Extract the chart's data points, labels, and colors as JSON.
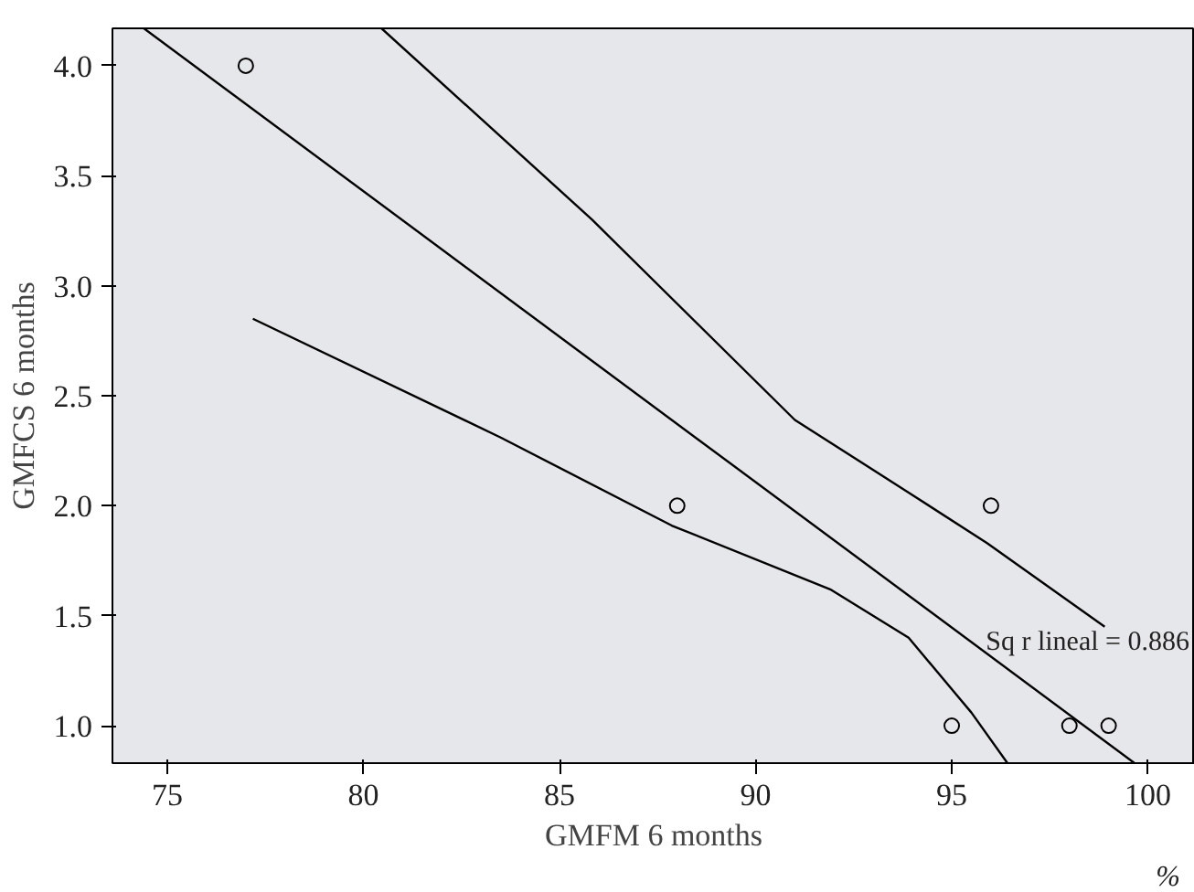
{
  "chart_data": {
    "type": "scatter",
    "xlabel": "GMFM 6 months",
    "ylabel": "GMFCS 6 months",
    "xlim": [
      73.6,
      101.2
    ],
    "ylim": [
      0.83,
      4.17
    ],
    "xticks": [
      75,
      80,
      85,
      90,
      95,
      100
    ],
    "yticks": [
      {
        "value": 1,
        "label": "1.0"
      },
      {
        "value": 1.5,
        "label": "1.5"
      },
      {
        "value": 2,
        "label": "2.0"
      },
      {
        "value": 2.5,
        "label": "2.5"
      },
      {
        "value": 3,
        "label": "3.0"
      },
      {
        "value": 3.5,
        "label": "3.5"
      },
      {
        "value": 4,
        "label": "4.0"
      }
    ],
    "grid": false,
    "series": [
      {
        "marker": "circle",
        "color": "#000000",
        "x": [
          77,
          88,
          96,
          95,
          98,
          99
        ],
        "values": [
          4,
          2,
          2,
          1,
          1,
          1
        ]
      },
      {
        "type": "line",
        "marker": "none",
        "color": "#000000",
        "x": [
          74.4,
          99.66
        ],
        "values": [
          4.17,
          0.83
        ]
      },
      {
        "type": "line",
        "marker": "none",
        "color": "#000000",
        "x": [
          80.46,
          85.83,
          91.0,
          93.9,
          95.9,
          98.9
        ],
        "values": [
          4.17,
          3.3,
          2.39,
          2.06,
          1.83,
          1.45
        ]
      },
      {
        "type": "line",
        "marker": "none",
        "color": "#000000",
        "x": [
          77.18,
          83.5,
          87.86,
          91.9,
          93.9,
          95.5,
          96.42
        ],
        "values": [
          2.85,
          2.31,
          1.91,
          1.62,
          1.4,
          1.06,
          0.83
        ]
      }
    ],
    "annotations": [
      "Sq r lineal = 0.886",
      "%"
    ]
  }
}
